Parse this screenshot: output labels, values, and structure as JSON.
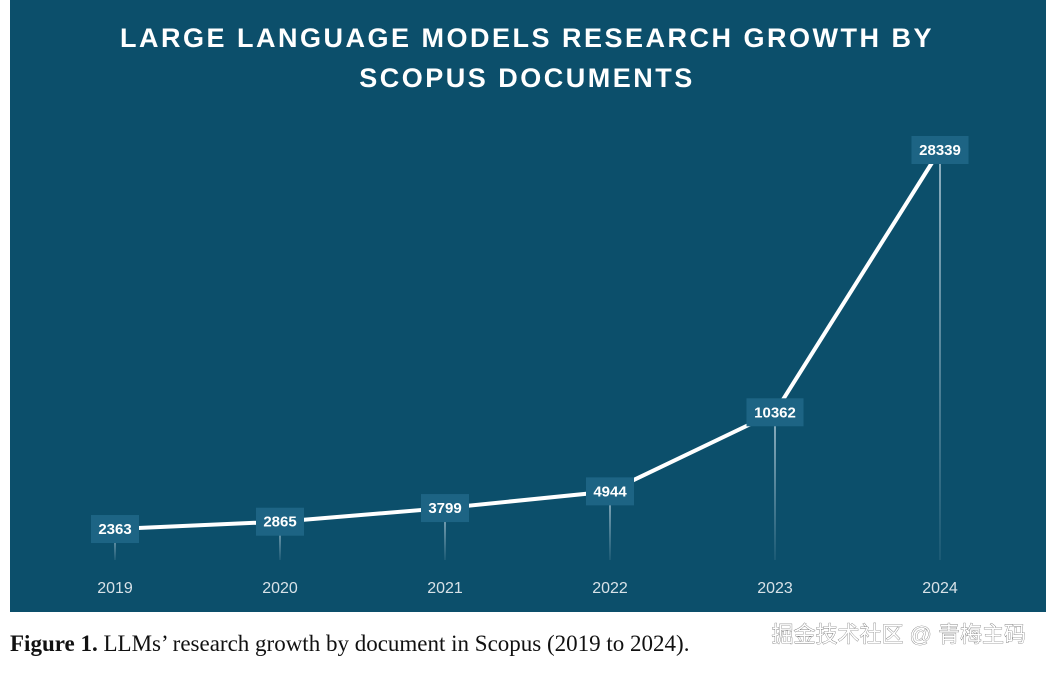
{
  "chart_data": {
    "type": "line",
    "title": [
      "LARGE LANGUAGE MODELS RESEARCH GROWTH BY",
      "SCOPUS DOCUMENTS"
    ],
    "categories": [
      "2019",
      "2020",
      "2021",
      "2022",
      "2023",
      "2024"
    ],
    "values": [
      2363,
      2865,
      3799,
      4944,
      10362,
      28339
    ],
    "color": "#ffffff",
    "background": "#0c4f6b",
    "label_box_color": "#1d6484"
  },
  "caption": {
    "label": "Figure 1.",
    "text": "LLMs’ research growth by document in Scopus (2019 to 2024)."
  },
  "watermark": "掘金技术社区 @ 青梅主码"
}
